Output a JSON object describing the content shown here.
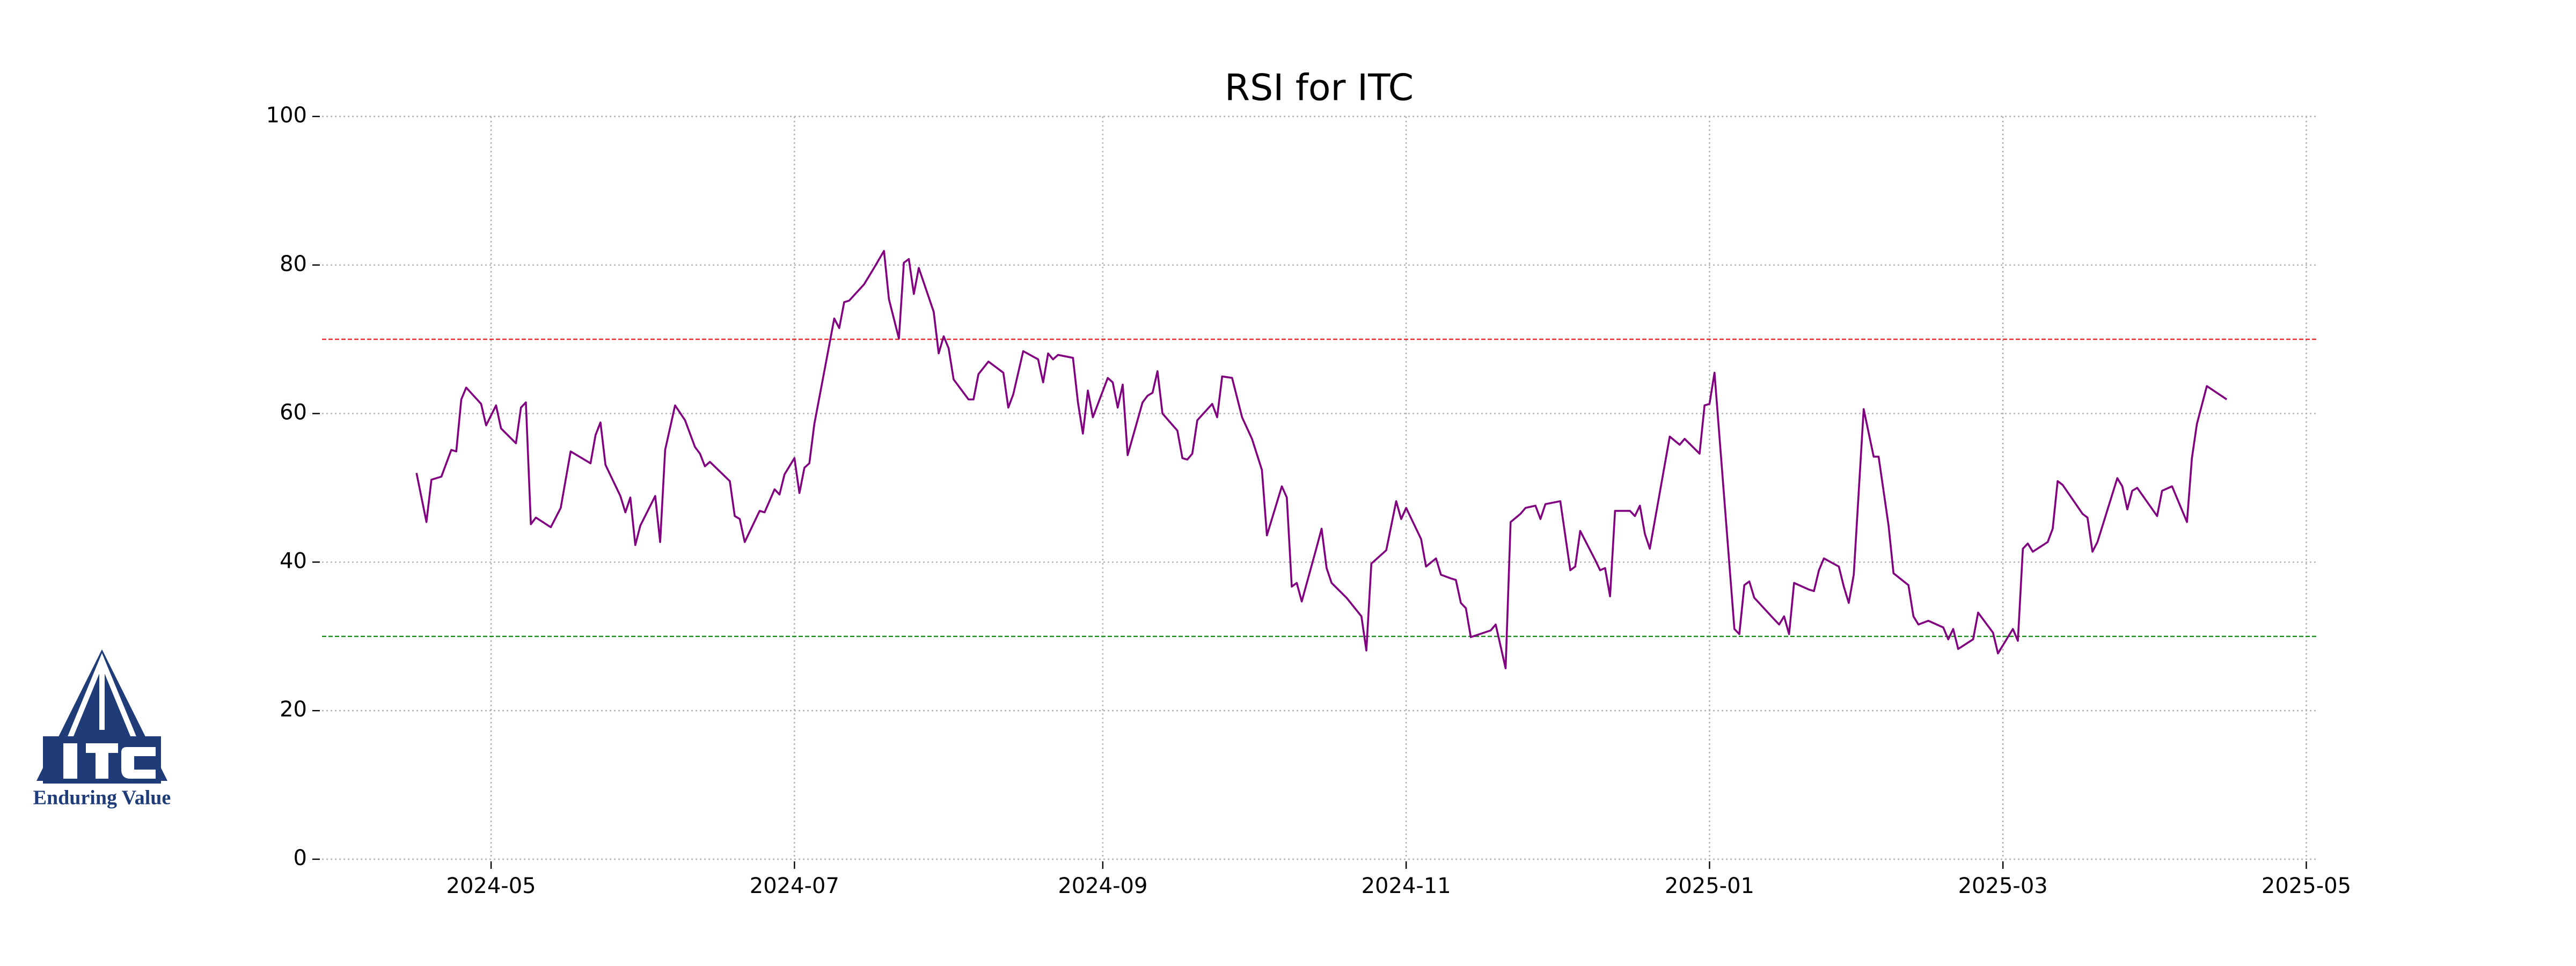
{
  "chart_data": {
    "type": "line",
    "title": "RSI for ITC",
    "color": "#800080",
    "x": [
      "2024-04-16",
      "2024-04-18",
      "2024-04-19",
      "2024-04-21",
      "2024-04-23",
      "2024-04-24",
      "2024-04-25",
      "2024-04-26",
      "2024-04-29",
      "2024-04-30",
      "2024-05-02",
      "2024-05-03",
      "2024-05-06",
      "2024-05-07",
      "2024-05-08",
      "2024-05-09",
      "2024-05-10",
      "2024-05-13",
      "2024-05-15",
      "2024-05-17",
      "2024-05-21",
      "2024-05-22",
      "2024-05-23",
      "2024-05-24",
      "2024-05-27",
      "2024-05-28",
      "2024-05-29",
      "2024-05-30",
      "2024-05-31",
      "2024-06-03",
      "2024-06-04",
      "2024-06-05",
      "2024-06-07",
      "2024-06-09",
      "2024-06-11",
      "2024-06-12",
      "2024-06-13",
      "2024-06-14",
      "2024-06-18",
      "2024-06-19",
      "2024-06-20",
      "2024-06-21",
      "2024-06-24",
      "2024-06-25",
      "2024-06-27",
      "2024-06-28",
      "2024-06-29",
      "2024-07-01",
      "2024-07-02",
      "2024-07-03",
      "2024-07-04",
      "2024-07-05",
      "2024-07-07",
      "2024-07-09",
      "2024-07-10",
      "2024-07-11",
      "2024-07-12",
      "2024-07-15",
      "2024-07-17",
      "2024-07-19",
      "2024-07-20",
      "2024-07-22",
      "2024-07-23",
      "2024-07-24",
      "2024-07-25",
      "2024-07-26",
      "2024-07-29",
      "2024-07-30",
      "2024-07-31",
      "2024-08-01",
      "2024-08-02",
      "2024-08-05",
      "2024-08-06",
      "2024-08-07",
      "2024-08-09",
      "2024-08-12",
      "2024-08-13",
      "2024-08-14",
      "2024-08-16",
      "2024-08-19",
      "2024-08-20",
      "2024-08-21",
      "2024-08-22",
      "2024-08-23",
      "2024-08-26",
      "2024-08-27",
      "2024-08-28",
      "2024-08-29",
      "2024-08-30",
      "2024-09-02",
      "2024-09-03",
      "2024-09-04",
      "2024-09-05",
      "2024-09-06",
      "2024-09-09",
      "2024-09-10",
      "2024-09-11",
      "2024-09-12",
      "2024-09-13",
      "2024-09-16",
      "2024-09-17",
      "2024-09-18",
      "2024-09-19",
      "2024-09-20",
      "2024-09-23",
      "2024-09-24",
      "2024-09-25",
      "2024-09-27",
      "2024-09-29",
      "2024-10-01",
      "2024-10-03",
      "2024-10-04",
      "2024-10-07",
      "2024-10-08",
      "2024-10-09",
      "2024-10-10",
      "2024-10-11",
      "2024-10-14",
      "2024-10-15",
      "2024-10-16",
      "2024-10-17",
      "2024-10-20",
      "2024-10-23",
      "2024-10-24",
      "2024-10-25",
      "2024-10-28",
      "2024-10-30",
      "2024-10-31",
      "2024-11-01",
      "2024-11-04",
      "2024-11-05",
      "2024-11-07",
      "2024-11-08",
      "2024-11-10",
      "2024-11-11",
      "2024-11-12",
      "2024-11-13",
      "2024-11-14",
      "2024-11-18",
      "2024-11-19",
      "2024-11-21",
      "2024-11-22",
      "2024-11-24",
      "2024-11-25",
      "2024-11-27",
      "2024-11-28",
      "2024-11-29",
      "2024-12-02",
      "2024-12-04",
      "2024-12-05",
      "2024-12-06",
      "2024-12-09",
      "2024-12-10",
      "2024-12-11",
      "2024-12-12",
      "2024-12-13",
      "2024-12-16",
      "2024-12-17",
      "2024-12-18",
      "2024-12-19",
      "2024-12-20",
      "2024-12-24",
      "2024-12-26",
      "2024-12-27",
      "2024-12-30",
      "2024-12-31",
      "2025-01-01",
      "2025-01-02",
      "2025-01-06",
      "2025-01-07",
      "2025-01-08",
      "2025-01-09",
      "2025-01-10",
      "2025-01-14",
      "2025-01-15",
      "2025-01-16",
      "2025-01-17",
      "2025-01-18",
      "2025-01-21",
      "2025-01-22",
      "2025-01-23",
      "2025-01-24",
      "2025-01-27",
      "2025-01-28",
      "2025-01-29",
      "2025-01-30",
      "2025-02-01",
      "2025-02-03",
      "2025-02-04",
      "2025-02-06",
      "2025-02-07",
      "2025-02-10",
      "2025-02-11",
      "2025-02-12",
      "2025-02-14",
      "2025-02-17",
      "2025-02-18",
      "2025-02-19",
      "2025-02-20",
      "2025-02-23",
      "2025-02-24",
      "2025-02-27",
      "2025-02-28",
      "2025-03-03",
      "2025-03-04",
      "2025-03-05",
      "2025-03-06",
      "2025-03-07",
      "2025-03-10",
      "2025-03-11",
      "2025-03-12",
      "2025-03-13",
      "2025-03-17",
      "2025-03-18",
      "2025-03-19",
      "2025-03-20",
      "2025-03-24",
      "2025-03-25",
      "2025-03-26",
      "2025-03-27",
      "2025-03-28",
      "2025-04-01",
      "2025-04-02",
      "2025-04-04",
      "2025-04-07",
      "2025-04-08",
      "2025-04-09",
      "2025-04-11",
      "2025-04-15"
    ],
    "values": [
      52,
      45.4,
      51.1,
      51.5,
      55.1,
      54.9,
      61.9,
      63.5,
      61.3,
      58.4,
      61.1,
      58,
      56,
      60.8,
      61.5,
      45.1,
      46,
      44.7,
      47.3,
      54.9,
      53.3,
      57.1,
      58.8,
      53.1,
      48.9,
      46.7,
      48.7,
      42.3,
      44.9,
      48.9,
      42.7,
      55.1,
      61.1,
      59.1,
      55.5,
      54.6,
      52.9,
      53.5,
      50.9,
      46.2,
      45.8,
      42.7,
      46.9,
      46.7,
      49.8,
      49.1,
      51.8,
      54,
      49.3,
      52.7,
      53.3,
      58.6,
      65.7,
      72.8,
      71.5,
      75,
      75.2,
      77.4,
      79.6,
      81.9,
      75.4,
      70.1,
      80.3,
      80.8,
      76.1,
      79.6,
      73.7,
      68.1,
      70.4,
      68.8,
      64.6,
      61.9,
      61.9,
      65.3,
      67,
      65.5,
      60.8,
      62.6,
      68.4,
      67.3,
      64.2,
      68.1,
      67.3,
      67.9,
      67.5,
      61.5,
      57.3,
      63.1,
      59.5,
      64.8,
      64.2,
      60.8,
      63.9,
      54.4,
      61.5,
      62.4,
      62.8,
      65.7,
      60,
      57.7,
      54,
      53.8,
      54.6,
      59.1,
      61.3,
      59.5,
      65,
      64.8,
      59.5,
      56.6,
      52.4,
      43.6,
      50.2,
      48.7,
      36.7,
      37.2,
      34.7,
      42,
      44.5,
      39.2,
      37.2,
      35.2,
      32.7,
      28.1,
      39.8,
      41.6,
      48.2,
      45.8,
      47.3,
      43.1,
      39.4,
      40.5,
      38.3,
      37.8,
      37.6,
      34.5,
      33.8,
      29.9,
      30.8,
      31.6,
      25.7,
      45.4,
      46.5,
      47.3,
      47.6,
      45.8,
      47.8,
      48.2,
      38.9,
      39.4,
      44.2,
      40.3,
      38.9,
      39.2,
      35.4,
      46.9,
      46.9,
      46.2,
      47.6,
      43.8,
      41.8,
      56.9,
      55.8,
      56.6,
      54.6,
      61.1,
      61.3,
      65.5,
      31,
      30.3,
      36.9,
      37.4,
      35.2,
      32.3,
      31.6,
      32.7,
      30.3,
      37.2,
      36.3,
      36.1,
      38.9,
      40.5,
      39.4,
      36.7,
      34.5,
      38.3,
      60.6,
      54.2,
      54.2,
      44.9,
      38.5,
      36.9,
      32.7,
      31.6,
      32.1,
      31.2,
      29.6,
      31,
      28.3,
      29.6,
      33.2,
      30.5,
      27.7,
      31,
      29.4,
      41.8,
      42.5,
      41.4,
      42.7,
      44.5,
      50.9,
      50.4,
      46.5,
      46,
      41.4,
      42.7,
      51.3,
      50.2,
      47.1,
      49.6,
      50,
      46.2,
      49.6,
      50.2,
      45.4,
      54,
      58.6,
      63.7,
      61.9
    ],
    "xlim": [
      "2024-03-28",
      "2025-05-03"
    ],
    "xticks": [
      "2024-05",
      "2024-07",
      "2024-09",
      "2024-11",
      "2025-01",
      "2025-03",
      "2025-05"
    ],
    "ylim": [
      0,
      100
    ],
    "yticks": [
      0,
      20,
      40,
      60,
      80,
      100
    ],
    "grid": true,
    "hlines": [
      {
        "value": 70,
        "color": "#e8262a"
      },
      {
        "value": 30,
        "color": "#1a8a1a"
      }
    ]
  },
  "logo_caption": "Enduring Value"
}
